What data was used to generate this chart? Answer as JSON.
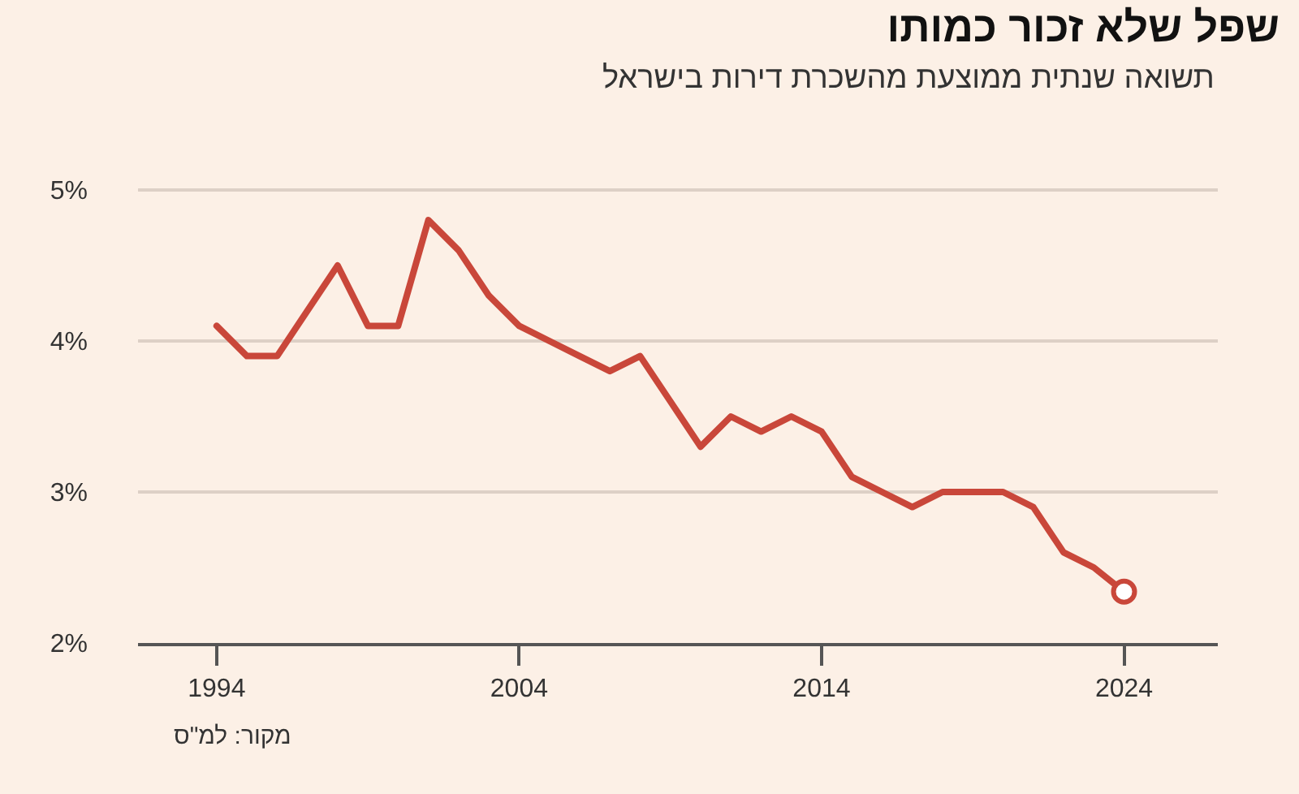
{
  "chart_data": {
    "type": "line",
    "title": "שפל שלא זכור כמותו",
    "subtitle": "תשואה שנתית ממוצעת מהשכרת דירות בישראל",
    "annotations": [
      "מקור: למ\"ס"
    ],
    "x": [
      1994,
      1995,
      1996,
      1997,
      1998,
      1999,
      2000,
      2001,
      2002,
      2003,
      2004,
      2005,
      2006,
      2007,
      2008,
      2009,
      2010,
      2011,
      2012,
      2013,
      2014,
      2015,
      2016,
      2017,
      2018,
      2019,
      2020,
      2021,
      2022,
      2023,
      2024
    ],
    "series": [
      {
        "color": "#c9473a",
        "values": [
          4.1,
          3.9,
          3.9,
          4.2,
          4.5,
          4.1,
          4.1,
          4.8,
          4.6,
          4.3,
          4.1,
          4.0,
          3.9,
          3.8,
          3.9,
          3.6,
          3.3,
          3.5,
          3.4,
          3.5,
          3.4,
          3.1,
          3.0,
          2.9,
          3.0,
          3.0,
          3.0,
          2.9,
          2.6,
          2.5,
          2.34
        ]
      },
      {
        "type": "scatter",
        "color": "#c9473a",
        "x": [
          2024
        ],
        "values": [
          2.34
        ],
        "marker": "circle"
      }
    ],
    "xlim": [
      1991.4,
      2027.1
    ],
    "xticks": [
      1994,
      2004,
      2014,
      2024
    ],
    "ylim": [
      2,
      5
    ],
    "yticks": [
      {
        "value": 2,
        "label": "2%"
      },
      {
        "value": 3,
        "label": "3%"
      },
      {
        "value": 4,
        "label": "4%"
      },
      {
        "value": 5,
        "label": "5%"
      }
    ],
    "grid": "y",
    "marker": "none",
    "line_style": "solid"
  }
}
